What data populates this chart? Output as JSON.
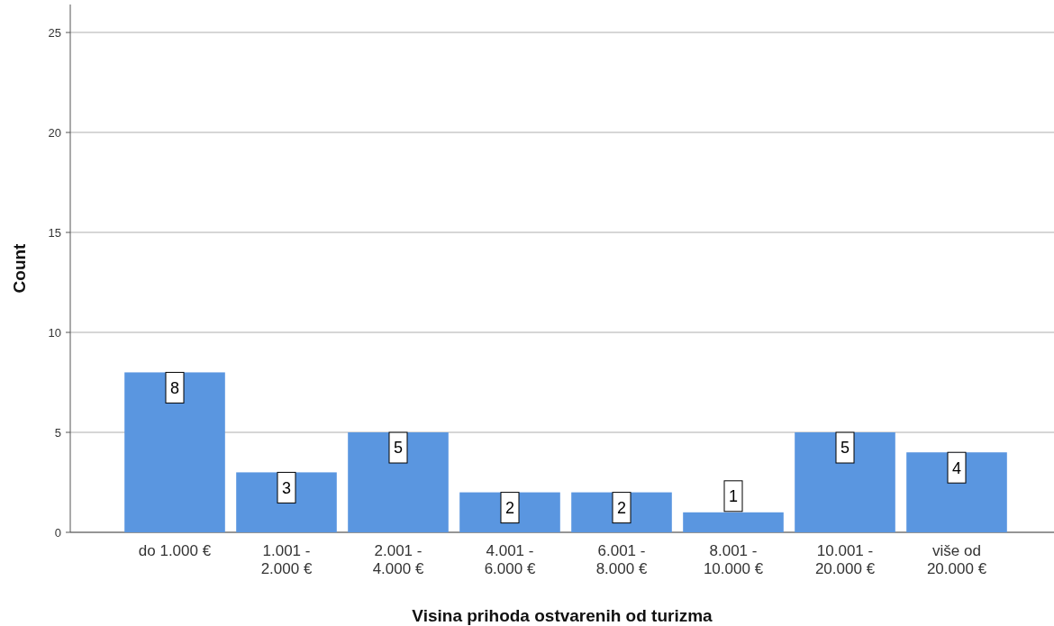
{
  "chart_data": {
    "type": "bar",
    "xlabel": "Visina prihoda ostvarenih od turizma",
    "ylabel": "Count",
    "categories": [
      "do 1.000 €",
      "1.001 - 2.000 €",
      "2.001 - 4.000 €",
      "4.001 - 6.000 €",
      "6.001 - 8.000 €",
      "8.001 - 10.000 €",
      "10.001 - 20.000 €",
      "više od 20.000 €"
    ],
    "values": [
      8,
      3,
      5,
      2,
      2,
      1,
      5,
      4
    ],
    "color": "#5a96e0",
    "ylim": [
      0,
      26.4
    ],
    "yticks": [
      0,
      5,
      10,
      15,
      20,
      25
    ],
    "grid": "y",
    "data_labels": true
  }
}
